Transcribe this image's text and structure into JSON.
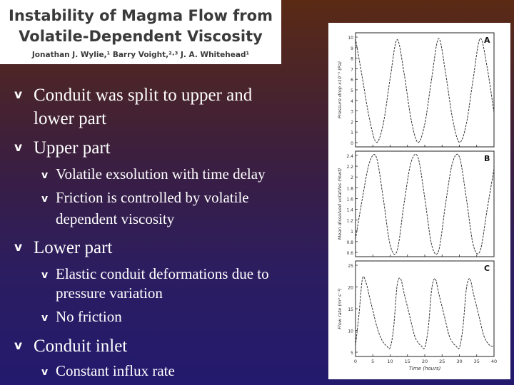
{
  "header": {
    "title_line1": "Instability of Magma Flow from",
    "title_line2": "Volatile-Dependent Viscosity",
    "authors": "Jonathan J. Wylie,¹ Barry Voight,²·³ J. A. Whitehead¹"
  },
  "bullets": {
    "b1_line1": "Conduit was split to upper and",
    "b1_line2": "lower part",
    "b2": "Upper part",
    "b2_sub1": "Volatile exsolution with time delay",
    "b2_sub2_line1": "Friction is controlled by volatile",
    "b2_sub2_line2": "dependent viscosity",
    "b3": "Lower part",
    "b3_sub1_line1": "Elastic conduit deformations due to",
    "b3_sub1_line2": "pressure variation",
    "b3_sub2": "No friction",
    "b4": "Conduit inlet",
    "b4_sub1": "Constant influx rate"
  },
  "bullet_marker": "v",
  "colors": {
    "background_top": "#5a2a14",
    "background_bottom": "#231a6e",
    "text": "#ffffff"
  },
  "chart_data": [
    {
      "type": "line",
      "panel_label": "A",
      "ylabel": "Pressure drop x10⁻⁵ (Pa)",
      "x_ticks": [
        0,
        5,
        10,
        15,
        20,
        25,
        30,
        35,
        40
      ],
      "y_ticks": [
        "10",
        "9",
        "8",
        "7",
        "6",
        "5",
        "4",
        "3",
        "2",
        "1",
        "0"
      ],
      "xlim": [
        0,
        40
      ],
      "ylim": [
        0,
        10
      ],
      "x": [
        0,
        2,
        4,
        6,
        8,
        10,
        12,
        14,
        16,
        18,
        20,
        22,
        24,
        26,
        28,
        30,
        32,
        34,
        36,
        38,
        40
      ],
      "y": [
        9.5,
        6,
        2.5,
        0.4,
        2,
        6,
        9.4,
        6.5,
        2.5,
        0.4,
        2,
        6,
        9.5,
        6.5,
        2.5,
        0.4,
        2,
        6,
        9.5,
        7,
        3
      ]
    },
    {
      "type": "line",
      "panel_label": "B",
      "ylabel": "Mean dissolved volatiles (%wt)",
      "x_ticks": [
        0,
        5,
        10,
        15,
        20,
        25,
        30,
        35,
        40
      ],
      "y_ticks": [
        "2.4",
        "2.2",
        "2",
        "1.8",
        "1.6",
        "1.4",
        "1.2",
        "1",
        "0.8",
        "0.6"
      ],
      "xlim": [
        0,
        40
      ],
      "ylim": [
        0.6,
        2.4
      ],
      "x": [
        0,
        2,
        4,
        6,
        8,
        10,
        12,
        14,
        16,
        18,
        20,
        22,
        24,
        26,
        28,
        30,
        32,
        34,
        36,
        38,
        40
      ],
      "y": [
        0.9,
        1.6,
        2.2,
        2.3,
        1.6,
        0.8,
        0.7,
        1.5,
        2.2,
        2.3,
        1.6,
        0.8,
        0.7,
        1.5,
        2.2,
        2.3,
        1.6,
        0.8,
        0.7,
        1.4,
        2.1
      ]
    },
    {
      "type": "line",
      "panel_label": "C",
      "ylabel": "Flow rate (m³ s⁻¹)",
      "xlabel": "Time (hours)",
      "x_ticks": [
        0,
        5,
        10,
        15,
        20,
        25,
        30,
        35,
        40
      ],
      "y_ticks": [
        "25",
        "20",
        "15",
        "10",
        "5"
      ],
      "xlim": [
        0,
        40
      ],
      "ylim": [
        0,
        27
      ],
      "x": [
        0,
        1,
        2,
        3,
        4,
        5,
        6,
        7,
        8,
        9,
        10,
        11,
        12,
        13,
        14,
        15,
        16,
        17,
        18,
        19,
        20,
        21,
        22,
        23,
        24,
        25,
        26,
        27,
        28,
        29,
        30,
        31,
        32,
        33,
        34,
        35,
        36,
        37,
        38,
        39,
        40
      ],
      "y": [
        3,
        12,
        22,
        21,
        17,
        13,
        9,
        6,
        4,
        3,
        2.5,
        8,
        20,
        22,
        18,
        14,
        10,
        6,
        4,
        3,
        2.5,
        8,
        19,
        22,
        18,
        14,
        10,
        6,
        4,
        3,
        2.5,
        8,
        19,
        22,
        18,
        14,
        10,
        6,
        4,
        3,
        3
      ]
    }
  ]
}
